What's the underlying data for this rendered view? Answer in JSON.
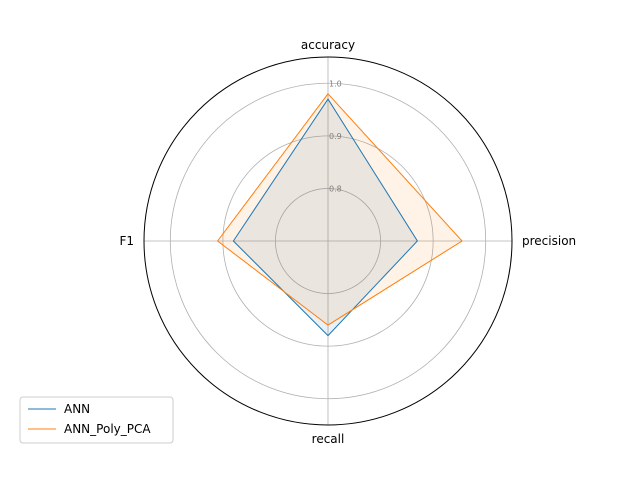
{
  "chart_data": {
    "type": "radar",
    "axes": [
      "accuracy",
      "precision",
      "recall",
      "F1"
    ],
    "radial_ticks": [
      "0.8",
      "0.9",
      "1.0"
    ],
    "rlim": [
      0.7,
      1.05
    ],
    "grid": true,
    "legend_position": "lower-left",
    "series": [
      {
        "name": "ANN",
        "color": "#1f77b4",
        "values": [
          0.97,
          0.87,
          0.88,
          0.88
        ]
      },
      {
        "name": "ANN_Poly_PCA",
        "color": "#ff7f0e",
        "values": [
          0.98,
          0.955,
          0.86,
          0.91
        ]
      }
    ]
  }
}
